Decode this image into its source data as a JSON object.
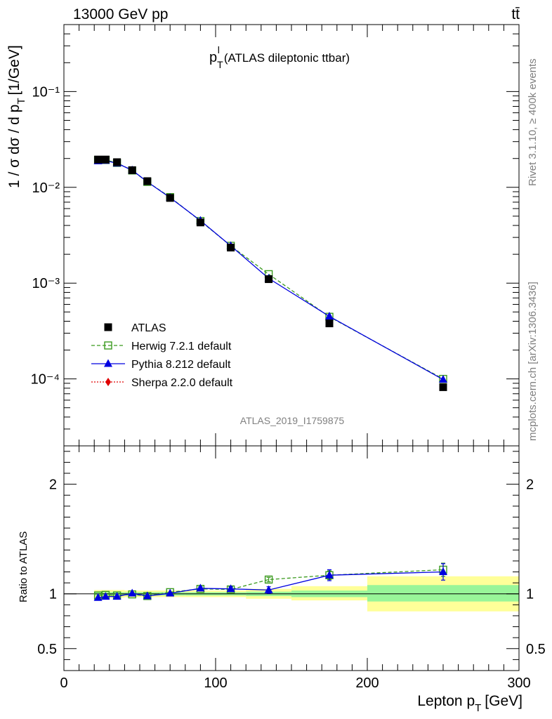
{
  "header": {
    "left": "13000 GeV pp",
    "right": "tt̄"
  },
  "side_labels": {
    "rivet": "Rivet 3.1.10, ≥ 400k events",
    "mcplots": "mcplots.cern.ch [arXiv:1306.3436]"
  },
  "chart_data": [
    {
      "type": "scatter",
      "title": "p_T^l (ATLAS dileptonic ttbar)",
      "title_main": "p",
      "title_sub": "T",
      "title_sup": "l",
      "title_rest": "(ATLAS dileptonic ttbar)",
      "ylabel": "1 / σ  dσ / d p_T [1/GeV]",
      "ylabel_main": "1 / σ  dσ / d p",
      "ylabel_sub": "T",
      "ylabel_rest": "[1/GeV]",
      "yscale": "log",
      "ylim": [
        2e-05,
        0.5
      ],
      "xlim": [
        0,
        300
      ],
      "ytick_labels": [
        "10⁻⁴",
        "10⁻³",
        "10⁻²",
        "10⁻¹"
      ],
      "analysis_label": "ATLAS_2019_I1759875",
      "legend_position": "lower-left",
      "x": [
        22.5,
        27.5,
        35,
        45,
        55,
        70,
        90,
        110,
        135,
        175,
        250
      ],
      "series": [
        {
          "name": "ATLAS",
          "marker": "square-filled",
          "color": "#000000",
          "values": [
            0.0195,
            0.0195,
            0.0183,
            0.0151,
            0.0116,
            0.00775,
            0.0043,
            0.00235,
            0.0011,
            0.00038,
            8.2e-05
          ]
        },
        {
          "name": "Herwig 7.2.1 default",
          "marker": "square-open",
          "line": "dashed",
          "color": "#3a9a1e",
          "values": [
            0.0192,
            0.0193,
            0.018,
            0.015,
            0.0114,
            0.0079,
            0.00445,
            0.00245,
            0.00124,
            0.000445,
            0.0001
          ]
        },
        {
          "name": "Pythia 8.212 default",
          "marker": "triangle-filled",
          "line": "solid",
          "color": "#0000e0",
          "values": [
            0.0188,
            0.019,
            0.0178,
            0.0151,
            0.0114,
            0.0078,
            0.0045,
            0.00245,
            0.00112,
            0.00045,
            9.85e-05
          ]
        },
        {
          "name": "Sherpa 2.2.0 default",
          "marker": "diamond-filled",
          "line": "dotted",
          "color": "#e00000",
          "values": []
        }
      ]
    },
    {
      "type": "scatter",
      "ylabel": "Ratio to ATLAS",
      "xlabel": "Lepton p_T [GeV]",
      "xlabel_main": "Lepton p",
      "xlabel_sub": "T",
      "xlabel_rest": "[GeV]",
      "xlim": [
        0,
        300
      ],
      "ylim": [
        0.3,
        2.35
      ],
      "xtick_labels": [
        "0",
        "100",
        "200",
        "300"
      ],
      "ytick_labels": [
        "0.5",
        "1",
        "2"
      ],
      "reference_line": 1,
      "uncertainty_bands": [
        {
          "x0": 20,
          "x1": 25,
          "inner": [
            0.985,
            1.015
          ],
          "outer": [
            0.965,
            1.035
          ]
        },
        {
          "x0": 25,
          "x1": 30,
          "inner": [
            0.985,
            1.015
          ],
          "outer": [
            0.965,
            1.035
          ]
        },
        {
          "x0": 30,
          "x1": 40,
          "inner": [
            0.985,
            1.015
          ],
          "outer": [
            0.965,
            1.035
          ]
        },
        {
          "x0": 40,
          "x1": 50,
          "inner": [
            0.985,
            1.015
          ],
          "outer": [
            0.97,
            1.03
          ]
        },
        {
          "x0": 50,
          "x1": 60,
          "inner": [
            0.985,
            1.015
          ],
          "outer": [
            0.97,
            1.03
          ]
        },
        {
          "x0": 60,
          "x1": 80,
          "inner": [
            0.985,
            1.015
          ],
          "outer": [
            0.97,
            1.03
          ]
        },
        {
          "x0": 80,
          "x1": 100,
          "inner": [
            0.985,
            1.015
          ],
          "outer": [
            0.97,
            1.03
          ]
        },
        {
          "x0": 100,
          "x1": 120,
          "inner": [
            0.985,
            1.015
          ],
          "outer": [
            0.97,
            1.03
          ]
        },
        {
          "x0": 120,
          "x1": 150,
          "inner": [
            0.98,
            1.02
          ],
          "outer": [
            0.955,
            1.045
          ]
        },
        {
          "x0": 150,
          "x1": 200,
          "inner": [
            0.97,
            1.03
          ],
          "outer": [
            0.94,
            1.07
          ]
        },
        {
          "x0": 200,
          "x1": 300,
          "inner": [
            0.93,
            1.08
          ],
          "outer": [
            0.84,
            1.16
          ]
        }
      ],
      "series": [
        {
          "name": "Herwig 7.2.1 default",
          "marker": "square-open",
          "line": "dashed",
          "color": "#3a9a1e",
          "values": [
            0.985,
            0.99,
            0.985,
            0.995,
            0.98,
            1.015,
            1.045,
            1.04,
            1.13,
            1.17,
            1.22
          ],
          "errors": [
            0.01,
            0.01,
            0.01,
            0.01,
            0.01,
            0.012,
            0.015,
            0.02,
            0.02,
            0.04,
            0.06
          ]
        },
        {
          "name": "Pythia 8.212 default",
          "marker": "triangle-filled",
          "line": "solid",
          "color": "#0000e0",
          "values": [
            0.965,
            0.975,
            0.975,
            1.005,
            0.98,
            1.005,
            1.05,
            1.045,
            1.035,
            1.17,
            1.2
          ],
          "errors": [
            0.01,
            0.01,
            0.01,
            0.01,
            0.01,
            0.012,
            0.015,
            0.02,
            0.03,
            0.05,
            0.075
          ]
        }
      ]
    }
  ]
}
